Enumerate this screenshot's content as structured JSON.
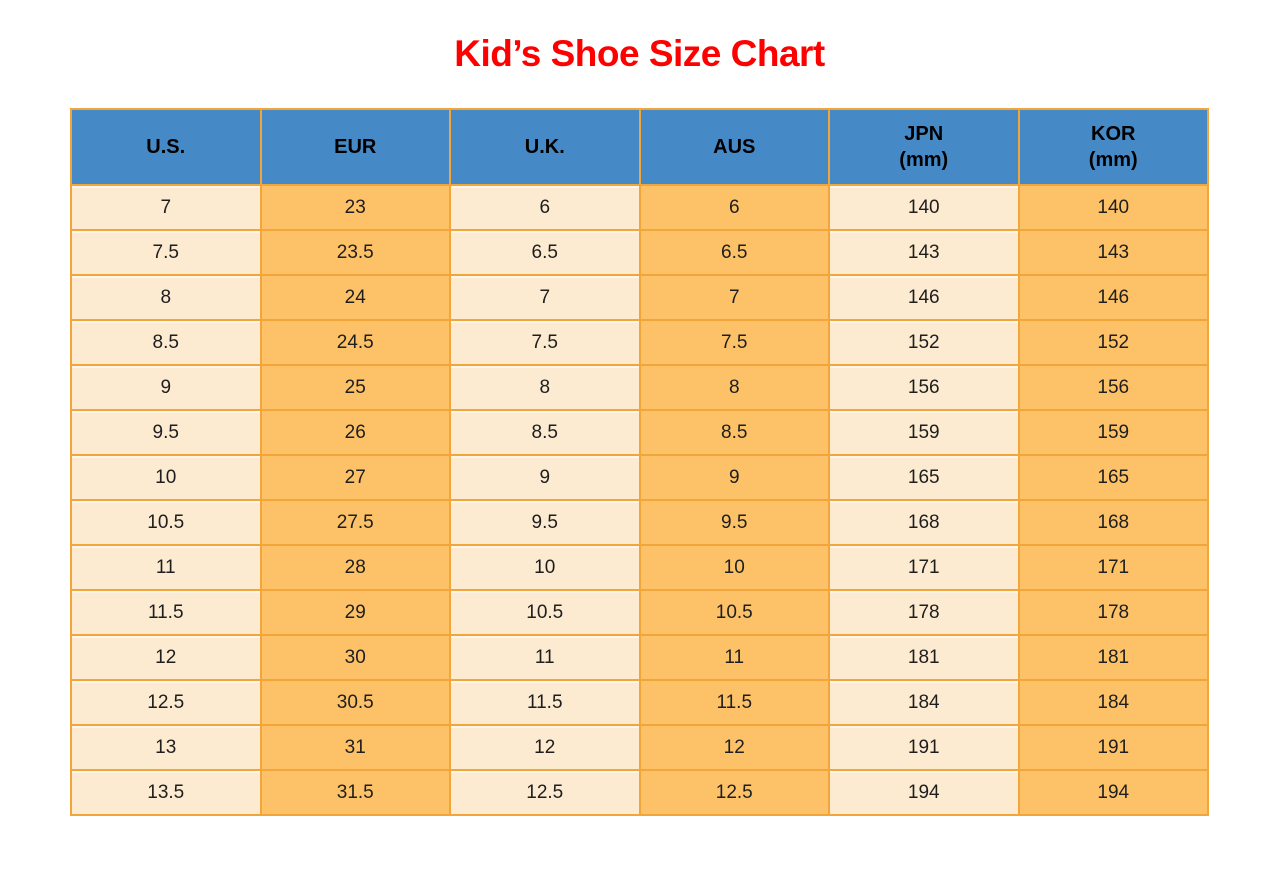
{
  "title": {
    "text": "Kid’s Shoe Size Chart"
  },
  "colors": {
    "title": "#FF0000",
    "header_bg": "#4589C7",
    "header_text": "#000000",
    "cell_light": "#FCEAD1",
    "cell_orange": "#FDC268",
    "grid_border": "#F2A63A",
    "cell_text": "#1E1E1E"
  },
  "chart_data": {
    "type": "table",
    "title": "Kid’s Shoe Size Chart",
    "columns": [
      {
        "label": "U.S.",
        "sub": "",
        "shade": "light"
      },
      {
        "label": "EUR",
        "sub": "",
        "shade": "orange"
      },
      {
        "label": "U.K.",
        "sub": "",
        "shade": "light"
      },
      {
        "label": "AUS",
        "sub": "",
        "shade": "orange"
      },
      {
        "label": "JPN",
        "sub": "(mm)",
        "shade": "light"
      },
      {
        "label": "KOR",
        "sub": "(mm)",
        "shade": "orange"
      }
    ],
    "rows": [
      [
        "7",
        "23",
        "6",
        "6",
        "140",
        "140"
      ],
      [
        "7.5",
        "23.5",
        "6.5",
        "6.5",
        "143",
        "143"
      ],
      [
        "8",
        "24",
        "7",
        "7",
        "146",
        "146"
      ],
      [
        "8.5",
        "24.5",
        "7.5",
        "7.5",
        "152",
        "152"
      ],
      [
        "9",
        "25",
        "8",
        "8",
        "156",
        "156"
      ],
      [
        "9.5",
        "26",
        "8.5",
        "8.5",
        "159",
        "159"
      ],
      [
        "10",
        "27",
        "9",
        "9",
        "165",
        "165"
      ],
      [
        "10.5",
        "27.5",
        "9.5",
        "9.5",
        "168",
        "168"
      ],
      [
        "11",
        "28",
        "10",
        "10",
        "171",
        "171"
      ],
      [
        "11.5",
        "29",
        "10.5",
        "10.5",
        "178",
        "178"
      ],
      [
        "12",
        "30",
        "11",
        "11",
        "181",
        "181"
      ],
      [
        "12.5",
        "30.5",
        "11.5",
        "11.5",
        "184",
        "184"
      ],
      [
        "13",
        "31",
        "12",
        "12",
        "191",
        "191"
      ],
      [
        "13.5",
        "31.5",
        "12.5",
        "12.5",
        "194",
        "194"
      ]
    ]
  }
}
